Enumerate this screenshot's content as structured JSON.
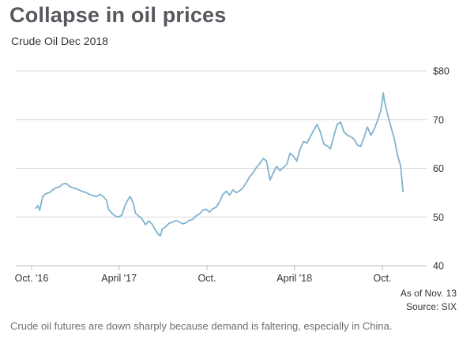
{
  "header": {
    "title": "Collapse in oil prices",
    "subtitle": "Crude Oil Dec 2018"
  },
  "notes": {
    "as_of": "As of Nov. 13",
    "source": "Source: SIX"
  },
  "caption": "Crude oil futures are down sharply because demand is faltering, especially in China.",
  "colors": {
    "line": "#7fb3cf",
    "grid": "#d9d9d9",
    "axis": "#bdbdbd",
    "title": "#55585d"
  },
  "chart_data": {
    "type": "line",
    "title": "Collapse in oil prices",
    "subtitle": "Crude Oil Dec 2018",
    "xlabel": "",
    "ylabel": "",
    "x_tick_labels": [
      "Oct. '16",
      "April '17",
      "Oct.",
      "April '18",
      "Oct."
    ],
    "y_tick_labels": [
      "$80",
      "70",
      "60",
      "50",
      "40"
    ],
    "ylim": [
      40,
      80
    ],
    "grid": true,
    "series": [
      {
        "values": [
          [
            "2016-10-10",
            51.8
          ],
          [
            "2016-10-14",
            52.3
          ],
          [
            "2016-10-18",
            51.4
          ],
          [
            "2016-10-24",
            54.2
          ],
          [
            "2016-10-31",
            54.8
          ],
          [
            "2016-11-07",
            55.0
          ],
          [
            "2016-11-14",
            55.6
          ],
          [
            "2016-11-21",
            56.0
          ],
          [
            "2016-11-28",
            56.2
          ],
          [
            "2016-12-05",
            56.8
          ],
          [
            "2016-12-12",
            56.9
          ],
          [
            "2016-12-19",
            56.3
          ],
          [
            "2016-12-26",
            56.0
          ],
          [
            "2017-01-02",
            55.8
          ],
          [
            "2017-01-09",
            55.5
          ],
          [
            "2017-01-16",
            55.2
          ],
          [
            "2017-01-23",
            55.0
          ],
          [
            "2017-01-30",
            54.6
          ],
          [
            "2017-02-06",
            54.4
          ],
          [
            "2017-02-13",
            54.2
          ],
          [
            "2017-02-20",
            54.7
          ],
          [
            "2017-02-27",
            54.2
          ],
          [
            "2017-03-06",
            53.4
          ],
          [
            "2017-03-10",
            51.6
          ],
          [
            "2017-03-17",
            50.8
          ],
          [
            "2017-03-24",
            50.2
          ],
          [
            "2017-03-31",
            50.0
          ],
          [
            "2017-04-07",
            50.4
          ],
          [
            "2017-04-14",
            52.5
          ],
          [
            "2017-04-21",
            53.8
          ],
          [
            "2017-04-24",
            54.2
          ],
          [
            "2017-05-01",
            52.8
          ],
          [
            "2017-05-05",
            50.8
          ],
          [
            "2017-05-12",
            50.2
          ],
          [
            "2017-05-19",
            49.6
          ],
          [
            "2017-05-26",
            48.4
          ],
          [
            "2017-06-02",
            49.2
          ],
          [
            "2017-06-09",
            48.5
          ],
          [
            "2017-06-16",
            47.3
          ],
          [
            "2017-06-21",
            46.5
          ],
          [
            "2017-06-26",
            46.1
          ],
          [
            "2017-06-30",
            47.5
          ],
          [
            "2017-07-07",
            48.0
          ],
          [
            "2017-07-14",
            48.7
          ],
          [
            "2017-07-21",
            48.9
          ],
          [
            "2017-07-28",
            49.3
          ],
          [
            "2017-08-04",
            49.0
          ],
          [
            "2017-08-11",
            48.6
          ],
          [
            "2017-08-18",
            48.8
          ],
          [
            "2017-08-25",
            49.3
          ],
          [
            "2017-09-01",
            49.5
          ],
          [
            "2017-09-08",
            50.2
          ],
          [
            "2017-09-15",
            50.6
          ],
          [
            "2017-09-22",
            51.4
          ],
          [
            "2017-09-29",
            51.6
          ],
          [
            "2017-10-06",
            51.0
          ],
          [
            "2017-10-13",
            51.7
          ],
          [
            "2017-10-20",
            52.0
          ],
          [
            "2017-10-27",
            53.1
          ],
          [
            "2017-11-03",
            54.6
          ],
          [
            "2017-11-10",
            55.3
          ],
          [
            "2017-11-17",
            54.5
          ],
          [
            "2017-11-24",
            55.6
          ],
          [
            "2017-12-01",
            55.0
          ],
          [
            "2017-12-08",
            55.4
          ],
          [
            "2017-12-15",
            56.0
          ],
          [
            "2017-12-22",
            57.1
          ],
          [
            "2017-12-29",
            58.3
          ],
          [
            "2018-01-05",
            59.1
          ],
          [
            "2018-01-12",
            60.2
          ],
          [
            "2018-01-19",
            61.0
          ],
          [
            "2018-01-26",
            62.0
          ],
          [
            "2018-02-02",
            61.5
          ],
          [
            "2018-02-09",
            57.6
          ],
          [
            "2018-02-16",
            59.0
          ],
          [
            "2018-02-23",
            60.4
          ],
          [
            "2018-03-02",
            59.5
          ],
          [
            "2018-03-09",
            60.2
          ],
          [
            "2018-03-16",
            60.8
          ],
          [
            "2018-03-23",
            63.1
          ],
          [
            "2018-03-30",
            62.5
          ],
          [
            "2018-04-06",
            61.5
          ],
          [
            "2018-04-13",
            64.0
          ],
          [
            "2018-04-20",
            65.5
          ],
          [
            "2018-04-27",
            65.2
          ],
          [
            "2018-05-04",
            66.5
          ],
          [
            "2018-05-11",
            67.8
          ],
          [
            "2018-05-18",
            69.0
          ],
          [
            "2018-05-25",
            67.5
          ],
          [
            "2018-06-01",
            65.0
          ],
          [
            "2018-06-08",
            64.6
          ],
          [
            "2018-06-15",
            64.0
          ],
          [
            "2018-06-22",
            66.6
          ],
          [
            "2018-06-29",
            69.0
          ],
          [
            "2018-07-06",
            69.5
          ],
          [
            "2018-07-13",
            67.5
          ],
          [
            "2018-07-20",
            66.8
          ],
          [
            "2018-07-27",
            66.5
          ],
          [
            "2018-08-03",
            66.0
          ],
          [
            "2018-08-10",
            64.8
          ],
          [
            "2018-08-17",
            64.5
          ],
          [
            "2018-08-24",
            66.4
          ],
          [
            "2018-08-31",
            68.5
          ],
          [
            "2018-09-07",
            66.8
          ],
          [
            "2018-09-14",
            68.0
          ],
          [
            "2018-09-21",
            69.8
          ],
          [
            "2018-09-28",
            72.0
          ],
          [
            "2018-10-03",
            75.5
          ],
          [
            "2018-10-05",
            74.0
          ],
          [
            "2018-10-12",
            71.0
          ],
          [
            "2018-10-19",
            68.5
          ],
          [
            "2018-10-26",
            66.0
          ],
          [
            "2018-11-02",
            62.5
          ],
          [
            "2018-11-08",
            60.5
          ],
          [
            "2018-11-13",
            55.2
          ]
        ]
      }
    ]
  }
}
